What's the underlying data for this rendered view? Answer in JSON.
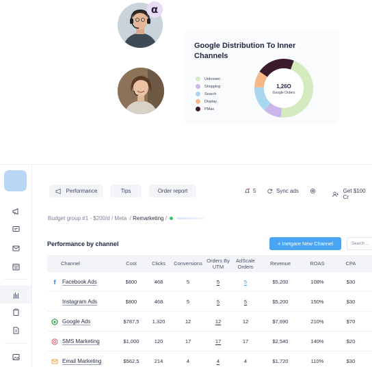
{
  "brand": {
    "badge": "α"
  },
  "distribution": {
    "title": "Google Distribution To Inner Channels",
    "total": "1,26O",
    "total_label": "Google Orders",
    "legend": [
      {
        "label": "Unknown",
        "color": "#d4ebbf"
      },
      {
        "label": "Shopping",
        "color": "#c9b6ea"
      },
      {
        "label": "Search",
        "color": "#a9d7ef"
      },
      {
        "label": "Display",
        "color": "#f6b88a"
      },
      {
        "label": "PMax",
        "color": "#3b1b2c"
      }
    ]
  },
  "chart_data": {
    "type": "pie",
    "categories": [
      "Unknown",
      "Shopping",
      "Search",
      "Display",
      "PMax"
    ],
    "values": [
      46,
      10,
      14,
      9,
      21
    ],
    "colors": [
      "#d4ebbf",
      "#c9b6ea",
      "#a9d7ef",
      "#f6b88a",
      "#3b1b2c"
    ],
    "title": "Google Distribution To Inner Channels"
  },
  "tabs": [
    {
      "label": "Performance",
      "icon": "megaphone-icon"
    },
    {
      "label": "Tips"
    },
    {
      "label": "Order report"
    }
  ],
  "topbar": {
    "notifications_count": "5",
    "sync_label": "Sync ads",
    "referral_label": "Get $100 Cr"
  },
  "breadcrumb": {
    "group": "Budget group #1 - $200/d",
    "platform": "Meta",
    "campaign": "Remarketing"
  },
  "section": {
    "title": "Performance by channel",
    "integrate_label": "+ Inetgare New Channel",
    "search_placeholder": "Search ..."
  },
  "table": {
    "headers": [
      "Channel",
      "Cost",
      "Clicks",
      "Conversions",
      "Orders By UTM",
      "AdScale Orders",
      "Revenue",
      "ROAS",
      "CPA"
    ],
    "rows": [
      {
        "channel": "Facebook Ads",
        "icon": "facebook-icon",
        "cost": "$800",
        "clicks": "468",
        "conversions": "5",
        "orders_utm": "5",
        "adscale_orders": "5",
        "revenue": "$5,200",
        "roas": "108%",
        "cpa": "$30"
      },
      {
        "channel": "Instagram Ads",
        "icon": "",
        "cost": "$800",
        "clicks": "468",
        "conversions": "5",
        "orders_utm": "5",
        "adscale_orders": "5",
        "revenue": "$5,200",
        "roas": "150%",
        "cpa": "$30"
      },
      {
        "channel": "Google Ads",
        "icon": "google-icon",
        "cost": "$787,5",
        "clicks": "1,320",
        "conversions": "12",
        "orders_utm": "12",
        "adscale_orders": "12",
        "revenue": "$7,690",
        "roas": "210%",
        "cpa": "$70"
      },
      {
        "channel": "SMS Marketing",
        "icon": "sms-icon",
        "cost": "$1,000",
        "clicks": "120",
        "conversions": "17",
        "orders_utm": "17",
        "adscale_orders": "17",
        "revenue": "$2,540",
        "roas": "140%",
        "cpa": "$20"
      },
      {
        "channel": "Email Marketing",
        "icon": "email-icon",
        "cost": "$562,5",
        "clicks": "214",
        "conversions": "4",
        "orders_utm": "4",
        "adscale_orders": "4",
        "revenue": "$1,720",
        "roas": "110%",
        "cpa": "$30"
      }
    ]
  }
}
